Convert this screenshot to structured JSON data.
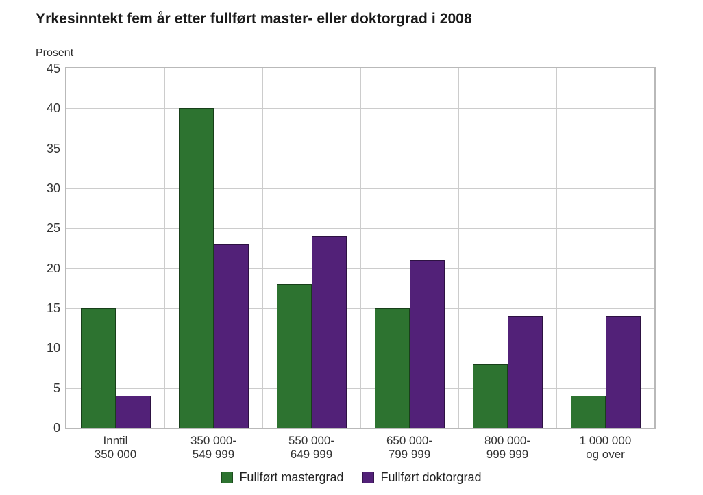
{
  "chart_data": {
    "type": "bar",
    "title": "Yrkesinntekt fem år etter fullført master- eller doktorgrad i 2008",
    "ylabel": "Prosent",
    "xlabel": "",
    "ylim": [
      0,
      45
    ],
    "ytick_step": 5,
    "grid": true,
    "legend_position": "bottom",
    "categories": [
      "Inntil\n350 000",
      "350 000-\n549 999",
      "550 000-\n649 999",
      "650 000-\n799 999",
      "800 000-\n999 999",
      "1 000 000\nog over"
    ],
    "series": [
      {
        "name": "Fullført mastergrad",
        "color": "#2d7330",
        "values": [
          15,
          40,
          18,
          15,
          8,
          4
        ]
      },
      {
        "name": "Fullført doktorgrad",
        "color": "#522178",
        "values": [
          4,
          23,
          24,
          21,
          14,
          14
        ]
      }
    ],
    "colors": {
      "grid": "#cccccc",
      "plot_border": "#b9b9b9",
      "bar_border": "#3f3f3f",
      "text": "#333333",
      "title": "#1a1a1a",
      "background": "#ffffff"
    }
  }
}
